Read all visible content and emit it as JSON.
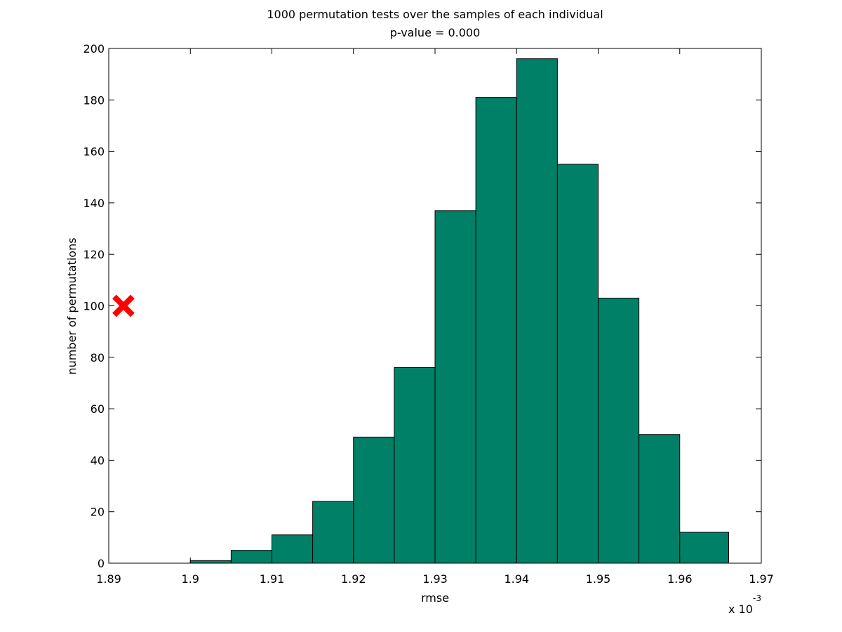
{
  "chart_data": {
    "type": "bar",
    "title": "1000 permutation tests over the samples of each individual",
    "subtitle": "p-value = 0.000",
    "xlabel": "rmse",
    "ylabel": "number of permutations",
    "x_multiplier_label": "x 10",
    "x_multiplier_exponent": "-3",
    "xlim": [
      1.89,
      1.97
    ],
    "ylim": [
      0,
      200
    ],
    "x_ticks": [
      1.89,
      1.9,
      1.91,
      1.92,
      1.93,
      1.94,
      1.95,
      1.96,
      1.97
    ],
    "x_tick_labels": [
      "1.89",
      "1.9",
      "1.91",
      "1.92",
      "1.93",
      "1.94",
      "1.95",
      "1.96",
      "1.97"
    ],
    "y_ticks": [
      0,
      20,
      40,
      60,
      80,
      100,
      120,
      140,
      160,
      180,
      200
    ],
    "y_tick_labels": [
      "0",
      "20",
      "40",
      "60",
      "80",
      "100",
      "120",
      "140",
      "160",
      "180",
      "200"
    ],
    "grid": false,
    "bar_color": "#008066",
    "bins": [
      {
        "x0": 1.9,
        "x1": 1.905,
        "count": 1
      },
      {
        "x0": 1.905,
        "x1": 1.91,
        "count": 5
      },
      {
        "x0": 1.91,
        "x1": 1.915,
        "count": 11
      },
      {
        "x0": 1.915,
        "x1": 1.92,
        "count": 24
      },
      {
        "x0": 1.92,
        "x1": 1.925,
        "count": 49
      },
      {
        "x0": 1.925,
        "x1": 1.93,
        "count": 76
      },
      {
        "x0": 1.93,
        "x1": 1.935,
        "count": 137
      },
      {
        "x0": 1.935,
        "x1": 1.94,
        "count": 181
      },
      {
        "x0": 1.94,
        "x1": 1.945,
        "count": 196
      },
      {
        "x0": 1.945,
        "x1": 1.95,
        "count": 155
      },
      {
        "x0": 1.95,
        "x1": 1.955,
        "count": 103
      },
      {
        "x0": 1.955,
        "x1": 1.96,
        "count": 50
      },
      {
        "x0": 1.96,
        "x1": 1.966,
        "count": 12
      }
    ],
    "marker": {
      "shape": "x",
      "color": "#ff0000",
      "x": 1.8918,
      "y": 100
    }
  }
}
